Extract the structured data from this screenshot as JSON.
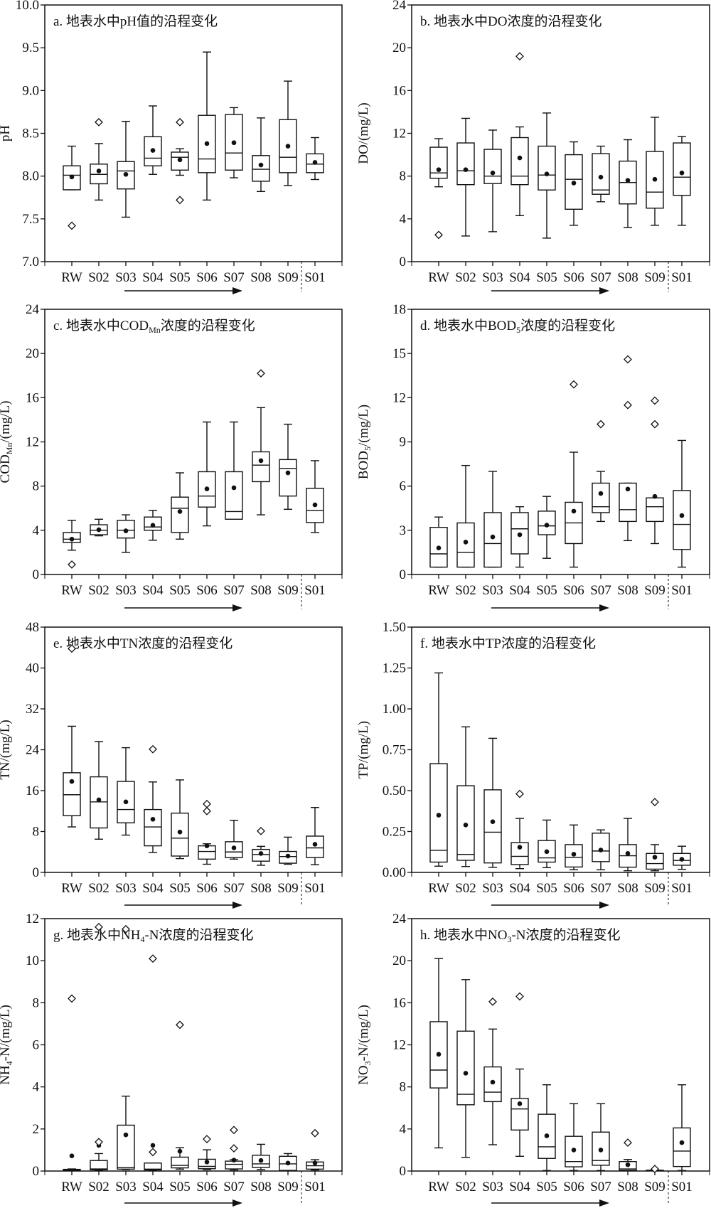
{
  "chart_data": [
    {
      "id": "a",
      "type": "box",
      "title": [
        "a. 地表水中pH值的沿程变化",
        "",
        ""
      ],
      "ylabel": [
        "pH",
        "",
        ""
      ],
      "ylim": [
        7.0,
        10.0
      ],
      "yticks": [
        "7.0",
        "7.5",
        "8.0",
        "8.5",
        "9.0",
        "9.5",
        "10.0"
      ],
      "categories": [
        "RW",
        "S02",
        "S03",
        "S04",
        "S05",
        "S06",
        "S07",
        "S08",
        "S09",
        "S01"
      ],
      "stats_order": [
        "min",
        "q1",
        "median",
        "q3",
        "max",
        "mean"
      ],
      "stats": [
        [
          7.84,
          7.84,
          8.01,
          8.12,
          8.35,
          7.99
        ],
        [
          7.72,
          7.91,
          8.02,
          8.14,
          8.38,
          8.06
        ],
        [
          7.52,
          7.85,
          8.06,
          8.17,
          8.64,
          8.02
        ],
        [
          8.02,
          8.12,
          8.21,
          8.46,
          8.82,
          8.3
        ],
        [
          8.01,
          8.07,
          8.22,
          8.28,
          8.32,
          8.19
        ],
        [
          7.72,
          8.04,
          8.2,
          8.71,
          9.45,
          8.38
        ],
        [
          7.98,
          8.07,
          8.27,
          8.72,
          8.8,
          8.39
        ],
        [
          7.82,
          7.94,
          8.08,
          8.24,
          8.68,
          8.13
        ],
        [
          7.89,
          8.04,
          8.22,
          8.66,
          9.11,
          8.35
        ],
        [
          7.96,
          8.04,
          8.14,
          8.26,
          8.45,
          8.16
        ]
      ],
      "outliers": [
        [
          7.42
        ],
        [
          8.63
        ],
        [],
        [],
        [
          8.63,
          7.72
        ],
        [],
        [],
        [],
        [],
        []
      ]
    },
    {
      "id": "b",
      "type": "box",
      "title": [
        "b. 地表水中DO浓度的沿程变化",
        "",
        ""
      ],
      "ylabel": [
        "DO/(mg/L)",
        "",
        ""
      ],
      "ylim": [
        0,
        24
      ],
      "yticks": [
        "0",
        "4",
        "8",
        "12",
        "16",
        "20",
        "24"
      ],
      "categories": [
        "RW",
        "S02",
        "S03",
        "S04",
        "S05",
        "S06",
        "S07",
        "S08",
        "S09",
        "S01"
      ],
      "stats": [
        [
          7.0,
          7.8,
          8.3,
          10.7,
          11.5,
          8.6
        ],
        [
          2.4,
          7.2,
          8.5,
          11.1,
          13.4,
          8.6
        ],
        [
          2.8,
          7.3,
          8.0,
          10.5,
          12.3,
          8.3
        ],
        [
          4.3,
          7.2,
          8.0,
          11.6,
          12.6,
          9.7
        ],
        [
          2.2,
          6.7,
          8.1,
          10.8,
          13.9,
          8.2
        ],
        [
          3.4,
          4.9,
          7.7,
          10.0,
          11.2,
          7.35
        ],
        [
          5.6,
          6.3,
          6.7,
          10.1,
          10.8,
          7.9
        ],
        [
          3.2,
          5.4,
          7.4,
          9.4,
          11.4,
          7.6
        ],
        [
          3.4,
          5.0,
          6.5,
          10.3,
          13.5,
          7.7
        ],
        [
          3.4,
          6.2,
          7.9,
          11.1,
          11.7,
          8.3
        ]
      ],
      "outliers": [
        [
          2.5
        ],
        [],
        [],
        [
          19.2
        ],
        [],
        [],
        [],
        [],
        [],
        []
      ]
    },
    {
      "id": "c",
      "type": "box",
      "title": [
        "c. 地表水中COD",
        "Mn",
        "浓度的沿程变化"
      ],
      "ylabel": [
        "COD",
        "Mn",
        "/(mg/L)"
      ],
      "ylim": [
        0,
        24
      ],
      "yticks": [
        "0",
        "4",
        "8",
        "12",
        "16",
        "20",
        "24"
      ],
      "categories": [
        "RW",
        "S02",
        "S03",
        "S04",
        "S05",
        "S06",
        "S07",
        "S08",
        "S09",
        "S01"
      ],
      "stats": [
        [
          2.2,
          2.9,
          3.2,
          3.8,
          4.9,
          3.2
        ],
        [
          3.5,
          3.6,
          4.0,
          4.5,
          5.0,
          4.05
        ],
        [
          2.0,
          3.3,
          4.0,
          4.9,
          5.4,
          3.95
        ],
        [
          3.1,
          4.0,
          4.3,
          5.2,
          5.8,
          4.45
        ],
        [
          3.2,
          3.8,
          6.0,
          7.0,
          9.2,
          5.7
        ],
        [
          4.4,
          6.1,
          7.1,
          9.3,
          13.8,
          7.75
        ],
        [
          5.0,
          5.0,
          5.7,
          9.3,
          13.8,
          7.85
        ],
        [
          5.4,
          8.4,
          9.9,
          11.1,
          15.1,
          10.3
        ],
        [
          5.9,
          7.1,
          9.6,
          10.4,
          13.6,
          9.2
        ],
        [
          3.8,
          4.7,
          5.8,
          7.8,
          10.3,
          6.3
        ]
      ],
      "outliers": [
        [
          0.9
        ],
        [],
        [],
        [],
        [],
        [],
        [],
        [
          18.2
        ],
        [],
        []
      ]
    },
    {
      "id": "d",
      "type": "box",
      "title": [
        "d. 地表水中BOD",
        "5",
        "浓度的沿程变化"
      ],
      "ylabel": [
        "BOD",
        "5",
        "/(mg/L)"
      ],
      "ylim": [
        0,
        18
      ],
      "yticks": [
        "0",
        "3",
        "6",
        "9",
        "12",
        "15",
        "18"
      ],
      "categories": [
        "RW",
        "S02",
        "S03",
        "S04",
        "S05",
        "S06",
        "S07",
        "S08",
        "S09",
        "S01"
      ],
      "stats": [
        [
          0.5,
          0.5,
          1.4,
          3.2,
          3.9,
          1.8
        ],
        [
          0.5,
          0.5,
          1.5,
          3.5,
          7.4,
          2.2
        ],
        [
          0.5,
          0.5,
          2.1,
          4.2,
          7.0,
          2.55
        ],
        [
          0.5,
          1.4,
          3.1,
          4.2,
          4.6,
          2.7
        ],
        [
          1.1,
          2.7,
          3.3,
          4.3,
          5.3,
          3.35
        ],
        [
          0.5,
          2.1,
          3.5,
          4.9,
          8.3,
          4.3
        ],
        [
          3.6,
          4.2,
          4.6,
          6.2,
          7.0,
          5.5
        ],
        [
          2.3,
          3.6,
          4.4,
          6.2,
          6.2,
          5.8
        ],
        [
          2.1,
          3.6,
          4.6,
          5.2,
          5.2,
          5.3
        ],
        [
          0.5,
          1.7,
          3.4,
          5.7,
          9.1,
          4.0
        ]
      ],
      "outliers": [
        [],
        [],
        [],
        [],
        [],
        [
          12.9
        ],
        [
          10.2
        ],
        [
          11.5,
          14.6
        ],
        [
          10.2,
          11.8
        ],
        []
      ]
    },
    {
      "id": "e",
      "type": "box",
      "title": [
        "e. 地表水中TN浓度的沿程变化",
        "",
        ""
      ],
      "ylabel": [
        "TN/(mg/L)",
        "",
        ""
      ],
      "ylim": [
        0,
        48
      ],
      "yticks": [
        "0",
        "8",
        "16",
        "24",
        "32",
        "40",
        "48"
      ],
      "categories": [
        "RW",
        "S02",
        "S03",
        "S04",
        "S05",
        "S06",
        "S07",
        "S08",
        "S09",
        "S01"
      ],
      "stats": [
        [
          8.9,
          11.1,
          15.2,
          19.5,
          28.6,
          17.8
        ],
        [
          6.5,
          8.7,
          13.8,
          18.7,
          25.6,
          14.2
        ],
        [
          7.3,
          9.7,
          12.3,
          17.8,
          24.4,
          13.8
        ],
        [
          3.9,
          5.2,
          8.9,
          12.3,
          17.7,
          10.4
        ],
        [
          2.7,
          3.2,
          6.7,
          11.6,
          18.1,
          7.9
        ],
        [
          1.6,
          2.6,
          4.1,
          5.2,
          5.6,
          5.2
        ],
        [
          2.6,
          2.9,
          4.0,
          6.0,
          10.2,
          4.8
        ],
        [
          1.4,
          2.2,
          3.5,
          4.5,
          5.1,
          3.7
        ],
        [
          1.6,
          1.8,
          3.1,
          4.1,
          6.9,
          3.2
        ],
        [
          1.5,
          2.9,
          4.8,
          7.1,
          12.7,
          5.5
        ]
      ],
      "outliers": [
        [
          43.8
        ],
        [],
        [],
        [
          24.1
        ],
        [],
        [
          13.4,
          12.0
        ],
        [],
        [
          8.1
        ],
        [],
        []
      ]
    },
    {
      "id": "f",
      "type": "box",
      "title": [
        "f. 地表水中TP浓度的沿程变化",
        "",
        ""
      ],
      "ylabel": [
        "TP/(mg/L)",
        "",
        ""
      ],
      "ylim": [
        0,
        1.5
      ],
      "yticks": [
        "0.00",
        "0.25",
        "0.50",
        "0.75",
        "1.00",
        "1.25",
        "1.50"
      ],
      "categories": [
        "RW",
        "S02",
        "S03",
        "S04",
        "S05",
        "S06",
        "S07",
        "S08",
        "S09",
        "S01"
      ],
      "stats": [
        [
          0.038,
          0.063,
          0.135,
          0.665,
          1.22,
          0.35
        ],
        [
          0.036,
          0.074,
          0.11,
          0.53,
          0.89,
          0.29
        ],
        [
          0.031,
          0.058,
          0.246,
          0.505,
          0.82,
          0.31
        ],
        [
          0.023,
          0.048,
          0.098,
          0.182,
          0.33,
          0.154
        ],
        [
          0.029,
          0.063,
          0.089,
          0.195,
          0.32,
          0.127
        ],
        [
          0.016,
          0.033,
          0.092,
          0.17,
          0.29,
          0.111
        ],
        [
          0.016,
          0.066,
          0.131,
          0.24,
          0.26,
          0.137
        ],
        [
          0.01,
          0.032,
          0.102,
          0.17,
          0.33,
          0.116
        ],
        [
          0.01,
          0.02,
          0.054,
          0.116,
          0.17,
          0.093
        ],
        [
          0.019,
          0.044,
          0.073,
          0.116,
          0.16,
          0.08
        ]
      ],
      "outliers": [
        [],
        [],
        [],
        [
          0.48
        ],
        [],
        [],
        [],
        [],
        [
          0.43
        ],
        []
      ]
    },
    {
      "id": "g",
      "type": "box",
      "title": [
        "g. 地表水中NH",
        "4",
        "-N浓度的沿程变化"
      ],
      "ylabel": [
        "NH",
        "4",
        "-N/(mg/L)"
      ],
      "ylim": [
        0,
        12
      ],
      "yticks": [
        "0",
        "2",
        "4",
        "6",
        "8",
        "10",
        "12"
      ],
      "categories": [
        "RW",
        "S02",
        "S03",
        "S04",
        "S05",
        "S06",
        "S07",
        "S08",
        "S09",
        "S01"
      ],
      "stats": [
        [
          0.02,
          0.03,
          0.05,
          0.08,
          0.1,
          0.72
        ],
        [
          0.03,
          0.06,
          0.1,
          0.5,
          0.83,
          1.22
        ],
        [
          0.07,
          0.09,
          0.16,
          2.18,
          3.56,
          1.72
        ],
        [
          0.03,
          0.05,
          0.09,
          0.38,
          0.38,
          1.22
        ],
        [
          0.09,
          0.15,
          0.27,
          0.66,
          1.11,
          0.94
        ],
        [
          0.07,
          0.11,
          0.22,
          0.56,
          1.01,
          0.43
        ],
        [
          0.05,
          0.1,
          0.32,
          0.47,
          0.54,
          0.52
        ],
        [
          0.07,
          0.17,
          0.34,
          0.75,
          1.27,
          0.5
        ],
        [
          0.02,
          0.03,
          0.34,
          0.7,
          0.83,
          0.38
        ],
        [
          0.05,
          0.09,
          0.25,
          0.43,
          0.54,
          0.38
        ]
      ],
      "outliers": [
        [
          8.2
        ],
        [
          1.38,
          11.6
        ],
        [
          11.5
        ],
        [
          0.9,
          10.1
        ],
        [
          6.95
        ],
        [
          1.52
        ],
        [
          1.08,
          1.95
        ],
        [],
        [],
        [
          1.8
        ]
      ]
    },
    {
      "id": "h",
      "type": "box",
      "title": [
        "h. 地表水中NO",
        "3",
        "-N浓度的沿程变化"
      ],
      "ylabel": [
        "NO",
        "3",
        "-N/(mg/L)"
      ],
      "ylim": [
        0,
        24
      ],
      "yticks": [
        "0",
        "4",
        "8",
        "12",
        "16",
        "20",
        "24"
      ],
      "categories": [
        "RW",
        "S02",
        "S03",
        "S04",
        "S05",
        "S06",
        "S07",
        "S08",
        "S09",
        "S01"
      ],
      "stats": [
        [
          2.2,
          7.9,
          9.6,
          14.2,
          20.2,
          11.1
        ],
        [
          1.3,
          6.3,
          7.3,
          13.3,
          18.2,
          9.3
        ],
        [
          2.5,
          6.6,
          7.5,
          9.9,
          13.5,
          8.45
        ],
        [
          1.4,
          3.9,
          5.9,
          6.9,
          9.7,
          6.4
        ],
        [
          0.05,
          1.2,
          2.3,
          5.4,
          8.2,
          3.35
        ],
        [
          0.05,
          0.4,
          0.9,
          3.3,
          6.4,
          2.0
        ],
        [
          0.05,
          0.55,
          1.0,
          3.7,
          6.4,
          2.0
        ],
        [
          0.05,
          0.07,
          0.2,
          0.9,
          1.1,
          0.6
        ],
        [
          0.02,
          0.03,
          0.05,
          0.08,
          0.1,
          0.15
        ],
        [
          0.05,
          0.43,
          1.9,
          4.1,
          8.2,
          2.7
        ]
      ],
      "outliers": [
        [],
        [],
        [
          16.1
        ],
        [
          16.6
        ],
        [],
        [],
        [],
        [
          2.7
        ],
        [
          0.2
        ],
        []
      ]
    }
  ]
}
